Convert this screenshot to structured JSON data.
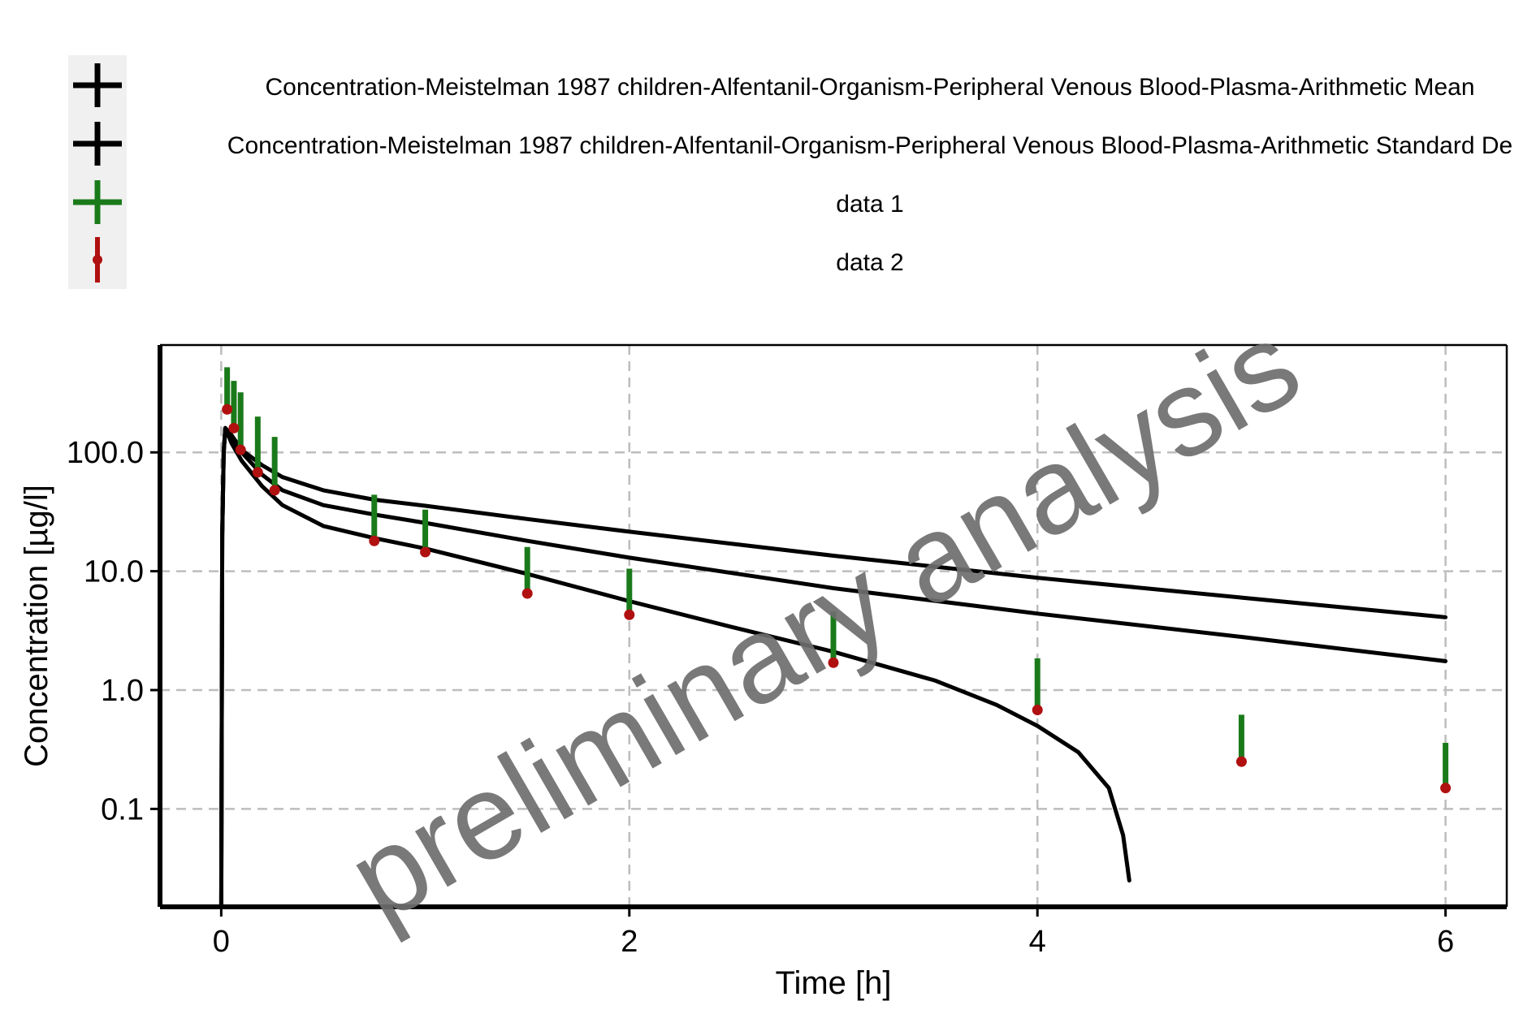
{
  "chart_data": {
    "type": "line",
    "xlabel": "Time [h]",
    "ylabel": "Concentration [µg/l]",
    "xlim": [
      -0.3,
      6.3
    ],
    "ylim": [
      0.015,
      800
    ],
    "yscale": "log",
    "grid": true,
    "legend_position": "top",
    "x_ticks": [
      0,
      2,
      4,
      6
    ],
    "x_tick_labels": [
      "0",
      "2",
      "4",
      "6"
    ],
    "y_ticks": [
      0.1,
      1,
      10,
      100
    ],
    "y_tick_labels": [
      "0.1",
      "1.0",
      "10.0",
      "100.0"
    ],
    "watermark": "preliminary analysis",
    "legend": [
      {
        "label": "Concentration-Meistelman 1987 children-Alfentanil-Organism-Peripheral Venous Blood-Plasma-Arithmetic Mean",
        "color": "#000000",
        "marker": "plus"
      },
      {
        "label": "Concentration-Meistelman 1987 children-Alfentanil-Organism-Peripheral Venous Blood-Plasma-Arithmetic Standard De",
        "color": "#000000",
        "marker": "plus"
      },
      {
        "label": "data 1",
        "color": "#1a7a1a",
        "marker": "plus"
      },
      {
        "label": "data 2",
        "color": "#b01010",
        "marker": "dot-errorbar"
      }
    ],
    "curves": [
      {
        "color": "#000000",
        "points": [
          [
            0,
            0.01
          ],
          [
            0.005,
            20
          ],
          [
            0.012,
            100
          ],
          [
            0.02,
            160
          ],
          [
            0.05,
            140
          ],
          [
            0.1,
            105
          ],
          [
            0.2,
            78
          ],
          [
            0.3,
            62
          ],
          [
            0.5,
            48
          ],
          [
            0.75,
            40
          ],
          [
            1,
            35.5
          ],
          [
            1.5,
            27.5
          ],
          [
            2,
            21.5
          ],
          [
            3,
            13.5
          ],
          [
            4,
            8.8
          ],
          [
            5,
            6
          ],
          [
            6,
            4.1
          ]
        ]
      },
      {
        "color": "#000000",
        "points": [
          [
            0,
            0.01
          ],
          [
            0.005,
            20
          ],
          [
            0.012,
            100
          ],
          [
            0.02,
            160
          ],
          [
            0.05,
            135
          ],
          [
            0.1,
            100
          ],
          [
            0.2,
            65
          ],
          [
            0.3,
            48
          ],
          [
            0.5,
            36
          ],
          [
            0.75,
            30
          ],
          [
            1,
            25.5
          ],
          [
            1.5,
            18
          ],
          [
            2,
            13
          ],
          [
            3,
            7.2
          ],
          [
            4,
            4.4
          ],
          [
            5,
            2.8
          ],
          [
            6,
            1.75
          ]
        ]
      },
      {
        "color": "#000000",
        "points": [
          [
            0,
            0.01
          ],
          [
            0.005,
            20
          ],
          [
            0.012,
            100
          ],
          [
            0.02,
            160
          ],
          [
            0.05,
            120
          ],
          [
            0.1,
            85
          ],
          [
            0.2,
            52
          ],
          [
            0.3,
            36
          ],
          [
            0.5,
            24
          ],
          [
            0.75,
            19
          ],
          [
            1,
            15.5
          ],
          [
            1.5,
            9.5
          ],
          [
            2,
            5.6
          ],
          [
            2.5,
            3.4
          ],
          [
            3,
            2.1
          ],
          [
            3.5,
            1.2
          ],
          [
            3.8,
            0.75
          ],
          [
            4,
            0.5
          ],
          [
            4.2,
            0.3
          ],
          [
            4.35,
            0.15
          ],
          [
            4.42,
            0.06
          ],
          [
            4.45,
            0.025
          ]
        ]
      }
    ],
    "points": {
      "x": [
        0.017,
        0.05,
        0.083,
        0.167,
        0.25,
        0.75,
        1,
        1.5,
        2,
        3,
        4,
        5,
        6
      ],
      "mean": [
        230,
        160,
        105,
        68,
        48,
        18,
        14.5,
        6.5,
        4.3,
        1.7,
        0.68,
        0.25,
        0.15
      ],
      "upper": [
        520,
        400,
        320,
        200,
        135,
        44,
        33,
        16,
        10.5,
        4.6,
        1.85,
        0.62,
        0.36
      ]
    }
  }
}
